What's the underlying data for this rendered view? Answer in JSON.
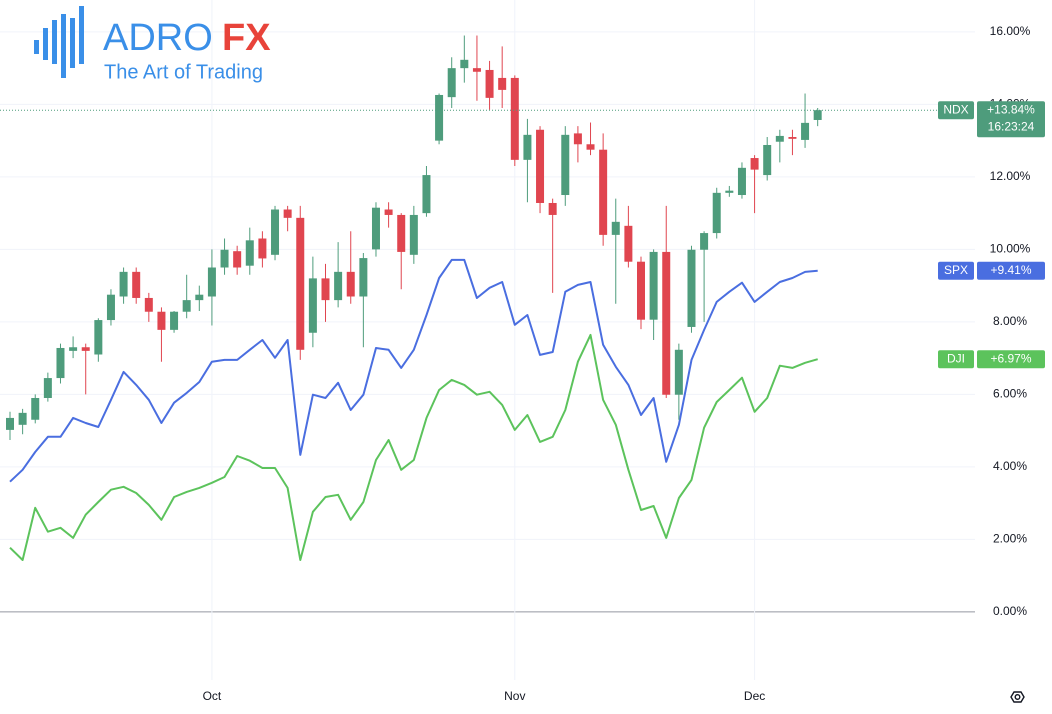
{
  "logo": {
    "brand_a": "ADRO",
    "brand_b": "FX",
    "tagline": "The Art of Trading"
  },
  "chart_data": {
    "type": "candlestick",
    "categories": [
      null,
      null,
      null,
      null,
      null,
      null,
      null,
      null,
      null,
      null,
      null,
      null,
      null,
      null,
      null,
      null,
      "Oct",
      null,
      null,
      null,
      null,
      null,
      null,
      null,
      null,
      null,
      null,
      null,
      null,
      null,
      null,
      null,
      null,
      null,
      null,
      null,
      null,
      null,
      null,
      null,
      "Nov",
      null,
      null,
      null,
      null,
      null,
      null,
      null,
      null,
      null,
      null,
      null,
      null,
      null,
      null,
      null,
      null,
      null,
      null,
      "Dec",
      null,
      null,
      null,
      null,
      null
    ],
    "ylim": [
      -1.88,
      16.88
    ],
    "yticks": [
      {
        "value": 0,
        "label": "0.00%"
      },
      {
        "value": 2,
        "label": "2.00%"
      },
      {
        "value": 4,
        "label": "4.00%"
      },
      {
        "value": 6,
        "label": "6.00%"
      },
      {
        "value": 8,
        "label": "8.00%"
      },
      {
        "value": 10,
        "label": "10.00%"
      },
      {
        "value": 12,
        "label": "12.00%"
      },
      {
        "value": 14,
        "label": "14.00%"
      },
      {
        "value": 16,
        "label": "16.00%"
      }
    ],
    "grid": true,
    "series": [
      {
        "name": "NDX",
        "type": "candlestick",
        "color": "#4e9c7c",
        "color_down": "#e0454f",
        "open": [
          5.02,
          5.16,
          5.3,
          5.9,
          6.45,
          7.2,
          7.3,
          7.1,
          8.05,
          8.7,
          9.38,
          8.66,
          8.28,
          7.78,
          8.28,
          8.6,
          8.7,
          9.5,
          9.95,
          9.55,
          10.3,
          9.85,
          11.1,
          10.87,
          7.7,
          9.2,
          8.6,
          9.38,
          8.7,
          10.0,
          11.1,
          10.95,
          9.85,
          11.0,
          13.0,
          14.2,
          15.0,
          15.0,
          14.95,
          14.73,
          14.73,
          12.47,
          13.3,
          11.28,
          11.5,
          13.2,
          12.9,
          12.75,
          10.4,
          10.65,
          9.66,
          8.06,
          9.93,
          5.99,
          7.86,
          9.99,
          10.45,
          11.56,
          11.5,
          12.52,
          12.05,
          12.97,
          13.1,
          13.02,
          13.57
        ],
        "high": [
          5.52,
          5.6,
          6.0,
          6.6,
          7.4,
          7.6,
          7.4,
          8.1,
          8.9,
          9.5,
          9.5,
          8.8,
          8.4,
          8.3,
          9.3,
          9.0,
          10.0,
          10.3,
          10.1,
          10.6,
          10.5,
          11.2,
          11.2,
          11.2,
          9.8,
          9.6,
          10.2,
          10.5,
          9.9,
          11.3,
          11.3,
          11.0,
          11.2,
          12.3,
          14.3,
          15.3,
          15.9,
          15.9,
          15.2,
          15.6,
          14.8,
          13.6,
          13.4,
          11.4,
          13.4,
          13.4,
          13.5,
          13.2,
          11.4,
          11.2,
          9.8,
          10.0,
          11.2,
          7.4,
          10.1,
          10.5,
          11.7,
          11.75,
          12.4,
          12.6,
          13.1,
          13.3,
          13.3,
          14.3,
          13.9
        ],
        "low": [
          4.74,
          4.9,
          5.2,
          5.8,
          6.3,
          7.0,
          6.0,
          6.9,
          7.9,
          8.5,
          8.5,
          8.0,
          6.9,
          7.7,
          8.1,
          8.3,
          7.9,
          9.3,
          9.3,
          9.3,
          9.5,
          9.7,
          10.5,
          6.95,
          7.3,
          8.0,
          8.4,
          8.5,
          7.3,
          9.8,
          10.6,
          8.9,
          9.6,
          10.9,
          12.9,
          13.9,
          14.6,
          14.1,
          13.85,
          13.9,
          12.3,
          11.3,
          11.0,
          8.8,
          11.2,
          12.4,
          12.6,
          10.1,
          8.5,
          9.5,
          7.8,
          7.5,
          5.9,
          5.3,
          7.7,
          8.0,
          10.3,
          11.45,
          11.4,
          11.0,
          11.9,
          12.4,
          12.6,
          12.8,
          13.4
        ],
        "close": [
          5.35,
          5.49,
          5.9,
          6.45,
          7.28,
          7.3,
          7.2,
          8.05,
          8.75,
          9.38,
          8.66,
          8.28,
          7.78,
          8.28,
          8.6,
          8.75,
          9.5,
          9.99,
          9.5,
          10.25,
          9.75,
          11.1,
          10.87,
          7.23,
          9.2,
          8.6,
          9.38,
          8.7,
          9.76,
          11.15,
          10.95,
          9.93,
          10.95,
          12.05,
          14.26,
          15.0,
          15.23,
          14.9,
          14.18,
          14.4,
          12.47,
          13.16,
          11.28,
          10.95,
          13.16,
          12.9,
          12.75,
          10.4,
          10.76,
          9.66,
          8.06,
          9.93,
          5.99,
          7.23,
          9.99,
          10.45,
          11.56,
          11.62,
          12.25,
          12.2,
          12.88,
          13.13,
          13.05,
          13.49,
          13.84
        ],
        "last_label": "+13.84%",
        "countdown": "16:23:24"
      },
      {
        "name": "SPX",
        "type": "line",
        "color": "#4a6ee0",
        "values": [
          3.59,
          3.92,
          4.41,
          4.83,
          4.83,
          5.35,
          5.21,
          5.1,
          5.85,
          6.62,
          6.26,
          5.85,
          5.21,
          5.77,
          6.04,
          6.34,
          6.9,
          6.95,
          6.95,
          7.23,
          7.5,
          7.01,
          7.5,
          4.33,
          5.99,
          5.9,
          6.32,
          5.57,
          5.99,
          7.28,
          7.23,
          6.73,
          7.23,
          8.19,
          9.21,
          9.71,
          9.71,
          8.66,
          8.94,
          9.1,
          7.92,
          8.19,
          7.09,
          7.17,
          8.83,
          9.02,
          9.1,
          7.37,
          6.76,
          6.26,
          5.43,
          5.9,
          4.14,
          5.16,
          6.95,
          7.78,
          8.55,
          8.83,
          9.08,
          8.55,
          8.83,
          9.1,
          9.21,
          9.38,
          9.41
        ],
        "last_label": "+9.41%"
      },
      {
        "name": "DJI",
        "type": "line",
        "color": "#5cc35c",
        "values": [
          1.77,
          1.43,
          2.87,
          2.21,
          2.32,
          2.04,
          2.68,
          3.03,
          3.37,
          3.45,
          3.28,
          2.95,
          2.54,
          3.17,
          3.31,
          3.42,
          3.56,
          3.72,
          4.3,
          4.17,
          3.97,
          3.97,
          3.42,
          1.43,
          2.76,
          3.17,
          3.23,
          2.54,
          3.03,
          4.19,
          4.74,
          3.92,
          4.19,
          5.35,
          6.12,
          6.4,
          6.26,
          5.99,
          6.07,
          5.71,
          5.02,
          5.43,
          4.69,
          4.83,
          5.57,
          6.9,
          7.64,
          5.85,
          5.16,
          3.92,
          2.81,
          2.92,
          2.04,
          3.14,
          3.64,
          5.08,
          5.79,
          6.12,
          6.46,
          5.52,
          5.9,
          6.79,
          6.73,
          6.87,
          6.97
        ],
        "last_label": "+6.97%"
      }
    ]
  }
}
